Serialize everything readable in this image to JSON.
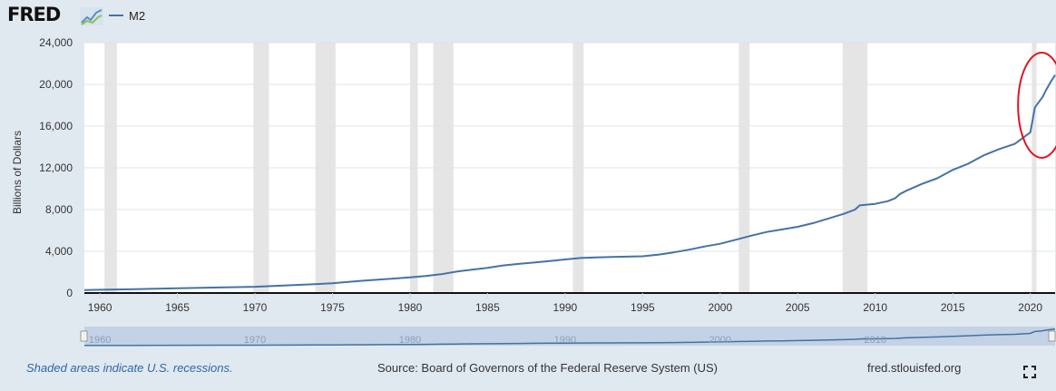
{
  "header": {
    "logo_text": "FRED",
    "logo_icon": "line-chart-logo-icon"
  },
  "chart_data": {
    "type": "line",
    "title": "",
    "ylabel": "Billions of Dollars",
    "xlabel": "",
    "xlim": [
      1959,
      2021.6
    ],
    "ylim": [
      0,
      24000
    ],
    "y_ticks": [
      0,
      4000,
      8000,
      12000,
      16000,
      20000,
      24000
    ],
    "y_tick_labels": [
      "0",
      "4,000",
      "8,000",
      "12,000",
      "16,000",
      "20,000",
      "24,000"
    ],
    "x_ticks": [
      1960,
      1965,
      1970,
      1975,
      1980,
      1985,
      1990,
      1995,
      2000,
      2005,
      2010,
      2015,
      2020
    ],
    "x_tick_labels": [
      "1960",
      "1965",
      "1970",
      "1975",
      "1980",
      "1985",
      "1990",
      "1995",
      "2000",
      "2005",
      "2010",
      "2015",
      "2020"
    ],
    "grid": true,
    "legend_position": "top-left",
    "series": [
      {
        "name": "M2",
        "color": "#4572a7",
        "x": [
          1959.0,
          1960.0,
          1962.0,
          1965.0,
          1968.0,
          1970.0,
          1972.0,
          1974.0,
          1975.0,
          1977.0,
          1979.0,
          1980.0,
          1981.0,
          1982.0,
          1983.0,
          1984.0,
          1985.0,
          1986.0,
          1987.0,
          1988.0,
          1989.0,
          1990.0,
          1991.0,
          1992.0,
          1993.0,
          1994.0,
          1995.0,
          1996.0,
          1997.0,
          1998.0,
          1999.0,
          2000.0,
          2001.0,
          2002.0,
          2003.0,
          2004.0,
          2005.0,
          2006.0,
          2007.0,
          2008.0,
          2008.7,
          2009.0,
          2010.0,
          2010.8,
          2011.3,
          2011.6,
          2012.0,
          2013.0,
          2014.0,
          2015.0,
          2016.0,
          2017.0,
          2018.0,
          2019.0,
          2020.0,
          2020.3,
          2020.5,
          2020.8,
          2021.0,
          2021.3,
          2021.6
        ],
        "values": [
          290,
          310,
          360,
          450,
          540,
          600,
          730,
          860,
          940,
          1180,
          1390,
          1500,
          1630,
          1800,
          2050,
          2240,
          2420,
          2640,
          2790,
          2920,
          3060,
          3220,
          3360,
          3420,
          3460,
          3490,
          3520,
          3680,
          3900,
          4160,
          4460,
          4720,
          5100,
          5500,
          5850,
          6100,
          6350,
          6700,
          7150,
          7600,
          8000,
          8400,
          8550,
          8800,
          9100,
          9500,
          9800,
          10450,
          11000,
          11800,
          12400,
          13200,
          13800,
          14300,
          15400,
          17800,
          18200,
          18800,
          19400,
          20200,
          20900
        ]
      }
    ],
    "recessions": [
      [
        1960.3,
        1961.1
      ],
      [
        1969.9,
        1970.9
      ],
      [
        1973.9,
        1975.2
      ],
      [
        1980.0,
        1980.5
      ],
      [
        1981.5,
        1982.8
      ],
      [
        1990.5,
        1991.2
      ],
      [
        2001.2,
        2001.9
      ],
      [
        2007.9,
        2009.5
      ],
      [
        2020.1,
        2020.4
      ]
    ],
    "navigator": {
      "labels": [
        "1960",
        "1970",
        "1980",
        "1990",
        "2000",
        "2010"
      ],
      "label_years": [
        1960,
        1970,
        1980,
        1990,
        2000,
        2010
      ]
    }
  },
  "annotation": {
    "type": "circle",
    "color": "#e0141e",
    "x_center_year": 2020.5,
    "y_center_value": 18000
  },
  "footer": {
    "note": "Shaded areas indicate U.S. recessions.",
    "source": "Source: Board of Governors of the Federal Reserve System (US)",
    "site": "fred.stlouisfed.org",
    "fullscreen_icon": "fullscreen-icon"
  }
}
